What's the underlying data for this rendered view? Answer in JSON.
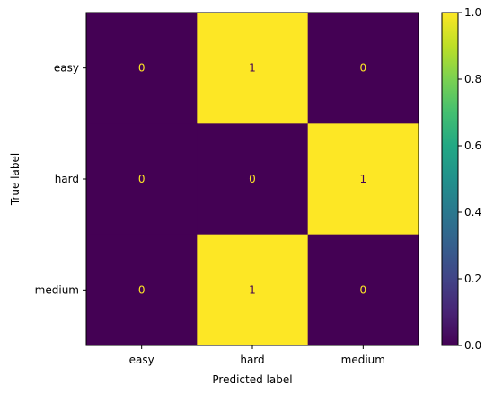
{
  "chart_data": {
    "type": "heatmap",
    "title": "",
    "xlabel": "Predicted label",
    "ylabel": "True label",
    "x_categories": [
      "easy",
      "hard",
      "medium"
    ],
    "y_categories": [
      "easy",
      "hard",
      "medium"
    ],
    "values": [
      [
        0,
        1,
        0
      ],
      [
        0,
        0,
        1
      ],
      [
        0,
        1,
        0
      ]
    ],
    "colormap": "viridis",
    "low_color": "#440154",
    "high_color": "#fde725",
    "low_text_color": "#fde725",
    "high_text_color": "#440154",
    "colorbar": {
      "range": [
        0.0,
        1.0
      ],
      "ticks": [
        "0.0",
        "0.2",
        "0.4",
        "0.6",
        "0.8",
        "1.0"
      ]
    }
  }
}
